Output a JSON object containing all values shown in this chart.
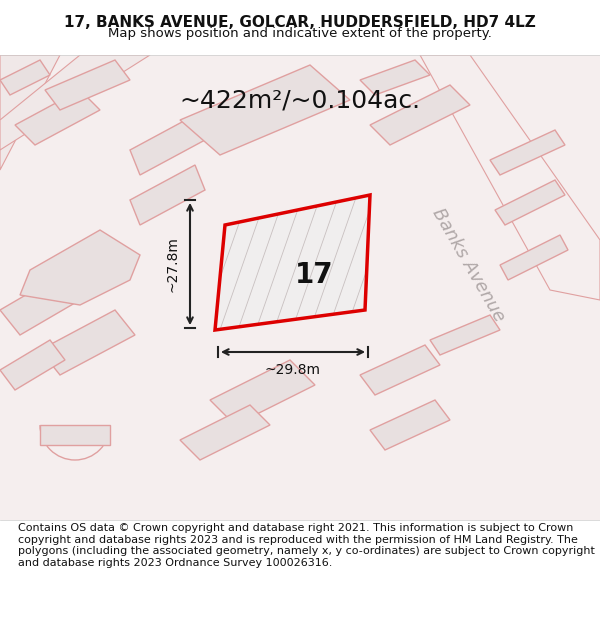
{
  "title_line1": "17, BANKS AVENUE, GOLCAR, HUDDERSFIELD, HD7 4LZ",
  "title_line2": "Map shows position and indicative extent of the property.",
  "footer_text": "Contains OS data © Crown copyright and database right 2021. This information is subject to Crown copyright and database rights 2023 and is reproduced with the permission of HM Land Registry. The polygons (including the associated geometry, namely x, y co-ordinates) are subject to Crown copyright and database rights 2023 Ordnance Survey 100026316.",
  "area_label": "~422m²/~0.104ac.",
  "dim_h_label": "~27.8m",
  "dim_w_label": "~29.8m",
  "property_number": "17",
  "road_label": "Banks Avenue",
  "bg_color": "#f5f0f0",
  "map_bg_color": "#f7f4f4",
  "building_fill": "#e0dada",
  "building_edge_color": "#e8a0a0",
  "road_color": "#ffffff",
  "plot_color": "#dd0000",
  "plot_fill": "#f0f0f0",
  "dim_color": "#222222",
  "title_fontsize": 11,
  "subtitle_fontsize": 9.5,
  "footer_fontsize": 8.0,
  "area_fontsize": 18,
  "property_num_fontsize": 20,
  "road_label_fontsize": 13
}
